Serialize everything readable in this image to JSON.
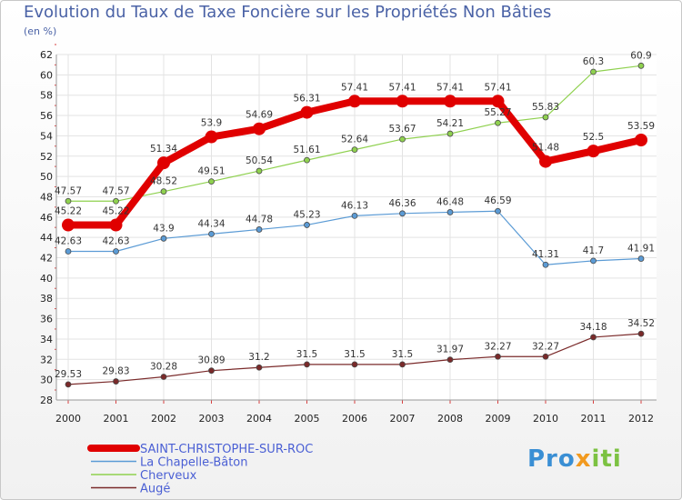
{
  "chart_data": {
    "type": "line",
    "title": "Evolution du Taux de Taxe Foncière sur les Propriétés Non Bâties",
    "ylabel": "(en %)",
    "xlabel": "",
    "categories": [
      "2000",
      "2001",
      "2002",
      "2003",
      "2004",
      "2005",
      "2006",
      "2007",
      "2008",
      "2009",
      "2010",
      "2011",
      "2012"
    ],
    "ylim": [
      28,
      62
    ],
    "yticks": [
      28,
      30,
      32,
      34,
      36,
      38,
      40,
      42,
      44,
      46,
      48,
      50,
      52,
      54,
      56,
      58,
      60,
      62
    ],
    "grid": true,
    "series": [
      {
        "name": "SAINT-CHRISTOPHE-SUR-ROC",
        "color": "#e00000",
        "emphasis": true,
        "values": [
          45.22,
          45.22,
          51.34,
          53.9,
          54.69,
          56.31,
          57.41,
          57.41,
          57.41,
          57.41,
          51.48,
          52.5,
          53.59
        ],
        "labels": [
          "45.22",
          "45.22",
          "51.34",
          "53.9",
          "54.69",
          "56.31",
          "57.41",
          "57.41",
          "57.41",
          "57.41",
          "51.48",
          "52.5",
          "53.59"
        ]
      },
      {
        "name": "La Chapelle-Bâton",
        "color": "#5b9bd5",
        "values": [
          42.63,
          42.63,
          43.9,
          44.34,
          44.78,
          45.23,
          46.13,
          46.36,
          46.48,
          46.59,
          41.31,
          41.7,
          41.91
        ],
        "labels": [
          "42.63",
          "42.63",
          "43.9",
          "44.34",
          "44.78",
          "45.23",
          "46.13",
          "46.36",
          "46.48",
          "46.59",
          "41.31",
          "41.7",
          "41.91"
        ]
      },
      {
        "name": "Cherveux",
        "color": "#8fd14f",
        "values": [
          47.57,
          47.57,
          48.52,
          49.51,
          50.54,
          51.61,
          52.64,
          53.67,
          54.21,
          55.27,
          55.83,
          60.3,
          60.9
        ],
        "labels": [
          "47.57",
          "47.57",
          "48.52",
          "49.51",
          "50.54",
          "51.61",
          "52.64",
          "53.67",
          "54.21",
          "55.27",
          "55.83",
          "60.3",
          "60.9"
        ]
      },
      {
        "name": "Augé",
        "color": "#7a2a2a",
        "values": [
          29.53,
          29.83,
          30.28,
          30.89,
          31.2,
          31.5,
          31.5,
          31.5,
          31.97,
          32.27,
          32.27,
          34.18,
          34.52
        ],
        "labels": [
          "29.53",
          "29.83",
          "30.28",
          "30.89",
          "31.2",
          "31.5",
          "31.5",
          "31.5",
          "31.97",
          "32.27",
          "32.27",
          "34.18",
          "34.52"
        ]
      }
    ]
  },
  "branding": {
    "logo_text": "Proxiti"
  }
}
